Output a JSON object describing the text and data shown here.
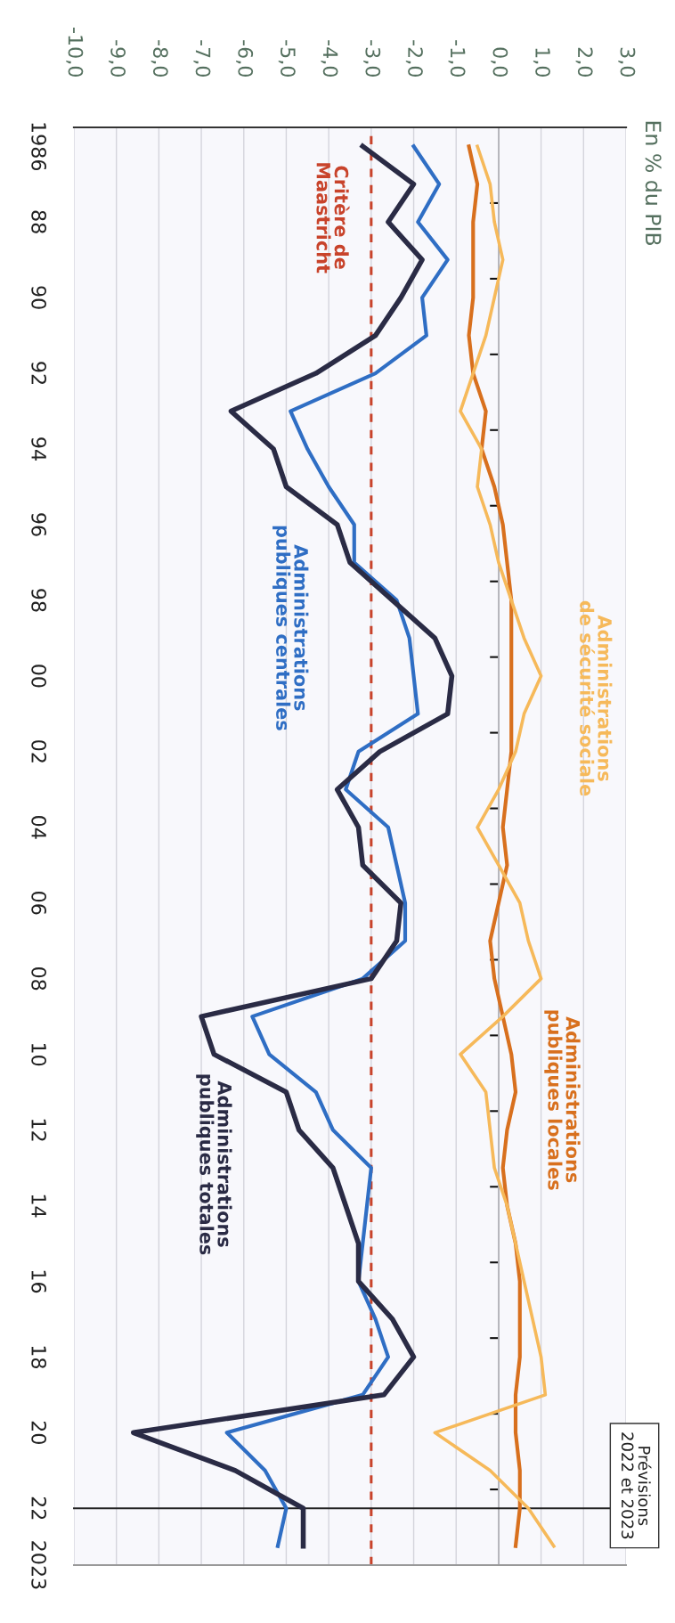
{
  "chart_data": {
    "type": "line",
    "ylabel": "En % du PIB",
    "series": [
      {
        "name": "Administrations publiques totales",
        "color": "#2a2b45",
        "x": [
          -3.2,
          -2.0,
          -2.6,
          -1.8,
          -2.3,
          -2.9,
          -4.3,
          -6.3,
          -5.3,
          -5.0,
          -3.8,
          -3.5,
          -2.5,
          -1.5,
          -1.1,
          -1.2,
          -2.8,
          -3.8,
          -3.3,
          -3.2,
          -2.3,
          -2.4,
          -3.0,
          -7.0,
          -6.7,
          -5.0,
          -4.7,
          -3.9,
          -3.6,
          -3.3,
          -3.3,
          -2.5,
          -2.0,
          -2.7,
          -8.6,
          -6.2,
          -4.6,
          -4.6
        ],
        "values": [
          1986,
          1987,
          1988,
          1989,
          1990,
          1991,
          1992,
          1993,
          1994,
          1995,
          1996,
          1997,
          1998,
          1999,
          2000,
          2001,
          2002,
          2003,
          2004,
          2005,
          2006,
          2007,
          2008,
          2009,
          2010,
          2011,
          2012,
          2013,
          2014,
          2015,
          2016,
          2017,
          2018,
          2019,
          2020,
          2021,
          2022,
          2023
        ]
      },
      {
        "name": "Administrations publiques centrales",
        "color": "#2f6ec4",
        "x": [
          -2.0,
          -1.4,
          -1.9,
          -1.2,
          -1.8,
          -1.7,
          -2.9,
          -4.9,
          -4.5,
          -4.0,
          -3.4,
          -3.4,
          -2.4,
          -2.1,
          -2.0,
          -1.9,
          -3.3,
          -3.6,
          -2.6,
          -2.4,
          -2.2,
          -2.2,
          -3.2,
          -5.8,
          -5.4,
          -4.3,
          -3.9,
          -3.0,
          -3.1,
          -3.2,
          -3.3,
          -2.9,
          -2.6,
          -3.2,
          -6.4,
          -5.5,
          -5.0,
          -5.2
        ],
        "values": [
          1986,
          1987,
          1988,
          1989,
          1990,
          1991,
          1992,
          1993,
          1994,
          1995,
          1996,
          1997,
          1998,
          1999,
          2000,
          2001,
          2002,
          2003,
          2004,
          2005,
          2006,
          2007,
          2008,
          2009,
          2010,
          2011,
          2012,
          2013,
          2014,
          2015,
          2016,
          2017,
          2018,
          2019,
          2020,
          2021,
          2022,
          2023
        ]
      },
      {
        "name": "Administrations de sécurité sociale",
        "color": "#f6b95a",
        "x": [
          -0.5,
          -0.2,
          -0.1,
          0.1,
          -0.1,
          -0.3,
          -0.6,
          -0.9,
          -0.4,
          -0.5,
          -0.2,
          0.0,
          0.3,
          0.6,
          1.0,
          0.6,
          0.4,
          0.0,
          -0.5,
          0.0,
          0.5,
          0.7,
          1.0,
          0.1,
          -0.9,
          -0.3,
          -0.2,
          -0.1,
          0.2,
          0.4,
          0.6,
          0.8,
          1.0,
          1.1,
          -1.5,
          -0.2,
          0.7,
          1.3
        ],
        "values": [
          1986,
          1987,
          1988,
          1989,
          1990,
          1991,
          1992,
          1993,
          1994,
          1995,
          1996,
          1997,
          1998,
          1999,
          2000,
          2001,
          2002,
          2003,
          2004,
          2005,
          2006,
          2007,
          2008,
          2009,
          2010,
          2011,
          2012,
          2013,
          2014,
          2015,
          2016,
          2017,
          2018,
          2019,
          2020,
          2021,
          2022,
          2023
        ]
      },
      {
        "name": "Administrations publiques locales",
        "color": "#d8701e",
        "x": [
          -0.7,
          -0.5,
          -0.6,
          -0.6,
          -0.6,
          -0.7,
          -0.6,
          -0.3,
          -0.4,
          -0.1,
          0.1,
          0.2,
          0.3,
          0.3,
          0.3,
          0.3,
          0.3,
          0.2,
          0.1,
          0.2,
          0.0,
          -0.2,
          -0.1,
          0.1,
          0.3,
          0.4,
          0.2,
          0.1,
          0.2,
          0.4,
          0.5,
          0.5,
          0.5,
          0.4,
          0.4,
          0.5,
          0.5,
          0.4
        ],
        "values": [
          1986,
          1987,
          1988,
          1989,
          1990,
          1991,
          1992,
          1993,
          1994,
          1995,
          1996,
          1997,
          1998,
          1999,
          2000,
          2001,
          2002,
          2003,
          2004,
          2005,
          2006,
          2007,
          2008,
          2009,
          2010,
          2011,
          2012,
          2013,
          2014,
          2015,
          2016,
          2017,
          2018,
          2019,
          2020,
          2021,
          2022,
          2023
        ]
      }
    ],
    "xlim": [
      -10,
      3
    ],
    "xticks": [
      {
        "value": -10,
        "label": "-10,0"
      },
      {
        "value": -9,
        "label": "-9,0"
      },
      {
        "value": -8,
        "label": "-8,0"
      },
      {
        "value": -7,
        "label": "-7,0"
      },
      {
        "value": -6,
        "label": "-6,0"
      },
      {
        "value": -5,
        "label": "-5,0"
      },
      {
        "value": -4,
        "label": "-4,0"
      },
      {
        "value": -3,
        "label": "-3,0"
      },
      {
        "value": -2,
        "label": "-2,0"
      },
      {
        "value": -1,
        "label": "-1,0"
      },
      {
        "value": 0,
        "label": "0,0"
      },
      {
        "value": 1,
        "label": "1,0"
      },
      {
        "value": 2,
        "label": "2,0"
      },
      {
        "value": 3,
        "label": "3,0"
      }
    ],
    "ylim": [
      2023.5,
      1985.5
    ],
    "yticks": [
      {
        "value": 1986,
        "label": "1986"
      },
      {
        "value": 1987.5,
        "label": null
      },
      {
        "value": 1988,
        "label": "88"
      },
      {
        "value": 1989.5,
        "label": null
      },
      {
        "value": 1990,
        "label": "90"
      },
      {
        "value": 1991.5,
        "label": null
      },
      {
        "value": 1992,
        "label": "92"
      },
      {
        "value": 1993.5,
        "label": null
      },
      {
        "value": 1994,
        "label": "94"
      },
      {
        "value": 1995.5,
        "label": null
      },
      {
        "value": 1996,
        "label": "96"
      },
      {
        "value": 1997.5,
        "label": null
      },
      {
        "value": 1998,
        "label": "98"
      },
      {
        "value": 1999.5,
        "label": null
      },
      {
        "value": 2000,
        "label": "00"
      },
      {
        "value": 2001.5,
        "label": null
      },
      {
        "value": 2002,
        "label": "02"
      },
      {
        "value": 2003.5,
        "label": null
      },
      {
        "value": 2004,
        "label": "04"
      },
      {
        "value": 2005.5,
        "label": null
      },
      {
        "value": 2006,
        "label": "06"
      },
      {
        "value": 2007.5,
        "label": null
      },
      {
        "value": 2008,
        "label": "08"
      },
      {
        "value": 2009.5,
        "label": null
      },
      {
        "value": 2010,
        "label": "10"
      },
      {
        "value": 2011.5,
        "label": null
      },
      {
        "value": 2012,
        "label": "12"
      },
      {
        "value": 2013.5,
        "label": null
      },
      {
        "value": 2014,
        "label": "14"
      },
      {
        "value": 2015.5,
        "label": null
      },
      {
        "value": 2016,
        "label": "16"
      },
      {
        "value": 2017.5,
        "label": null
      },
      {
        "value": 2018,
        "label": "18"
      },
      {
        "value": 2019.5,
        "label": null
      },
      {
        "value": 2020,
        "label": "20"
      },
      {
        "value": 2021.5,
        "label": null
      },
      {
        "value": 2022,
        "label": "22"
      },
      {
        "value": 2023.5,
        "label": "2023"
      }
    ],
    "ref_lines": [
      {
        "axis": "x",
        "value": -3,
        "label": "Critère de\nMaastricht",
        "color": "#c8432b",
        "line_style": "dashed"
      },
      {
        "axis": "y",
        "value": 2022,
        "label": "Prévisions\n2022 et 2023",
        "color": "#222222",
        "line_style": "solid"
      }
    ],
    "grid": "x",
    "marker": "none",
    "line_style": "solid"
  }
}
